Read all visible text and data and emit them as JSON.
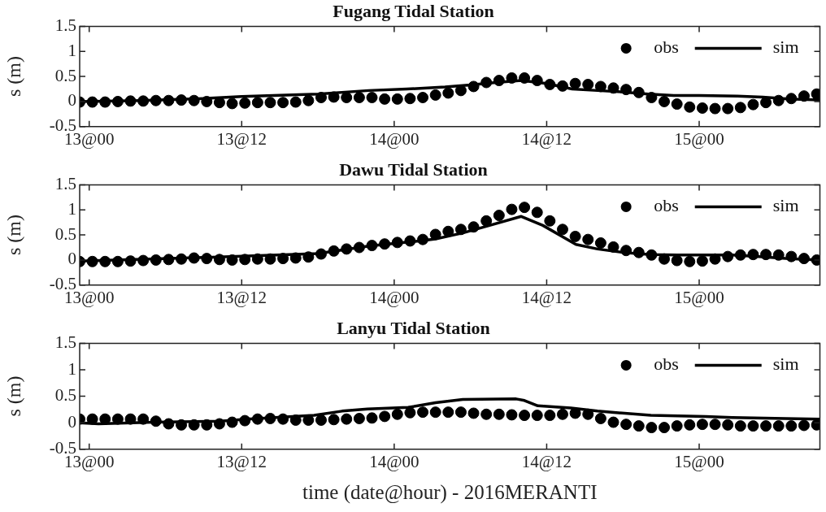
{
  "chart_data": [
    {
      "type": "scatter",
      "title": "Fugang Tidal Station",
      "ylabel": "s (m)",
      "legend": "top right",
      "grid": false,
      "marker": "circle",
      "xlim": [
        "2016-09-12T23:15",
        "2016-09-15T09:30"
      ],
      "ylim": [
        -0.5,
        1.5
      ],
      "yticks": [
        -0.5,
        0,
        0.5,
        1,
        1.5
      ],
      "xticks": [
        {
          "value": "2016-09-13T00:00",
          "label": "13@00"
        },
        {
          "value": "2016-09-13T12:00",
          "label": "13@12"
        },
        {
          "value": "2016-09-14T00:00",
          "label": "14@00"
        },
        {
          "value": "2016-09-14T12:00",
          "label": "14@12"
        },
        {
          "value": "2016-09-15T00:00",
          "label": "15@00"
        }
      ],
      "x": [
        "2016-09-12T23:15",
        "2016-09-13T00:15",
        "2016-09-13T01:15",
        "2016-09-13T02:15",
        "2016-09-13T03:15",
        "2016-09-13T04:15",
        "2016-09-13T05:15",
        "2016-09-13T06:15",
        "2016-09-13T07:15",
        "2016-09-13T08:15",
        "2016-09-13T09:15",
        "2016-09-13T10:15",
        "2016-09-13T11:15",
        "2016-09-13T12:15",
        "2016-09-13T13:15",
        "2016-09-13T14:15",
        "2016-09-13T15:15",
        "2016-09-13T16:15",
        "2016-09-13T17:15",
        "2016-09-13T18:15",
        "2016-09-13T19:15",
        "2016-09-13T20:15",
        "2016-09-13T21:15",
        "2016-09-13T22:15",
        "2016-09-13T23:15",
        "2016-09-14T00:15",
        "2016-09-14T01:15",
        "2016-09-14T02:15",
        "2016-09-14T03:15",
        "2016-09-14T04:15",
        "2016-09-14T05:15",
        "2016-09-14T06:15",
        "2016-09-14T07:15",
        "2016-09-14T08:15",
        "2016-09-14T09:15",
        "2016-09-14T10:15",
        "2016-09-14T11:15",
        "2016-09-14T12:15",
        "2016-09-14T13:15",
        "2016-09-14T14:15",
        "2016-09-14T15:15",
        "2016-09-14T16:15",
        "2016-09-14T17:15",
        "2016-09-14T18:15",
        "2016-09-14T19:15",
        "2016-09-14T20:15",
        "2016-09-14T21:15",
        "2016-09-14T22:15",
        "2016-09-14T23:15",
        "2016-09-15T00:15",
        "2016-09-15T01:15",
        "2016-09-15T02:15",
        "2016-09-15T03:15",
        "2016-09-15T04:15",
        "2016-09-15T05:15",
        "2016-09-15T06:15",
        "2016-09-15T07:15",
        "2016-09-15T08:15",
        "2016-09-15T09:15"
      ],
      "series": [
        {
          "name": "obs",
          "color": "#000000",
          "values": [
            -0.01,
            -0.01,
            -0.01,
            0,
            0.01,
            0.01,
            0.02,
            0.02,
            0.03,
            0.02,
            0,
            -0.02,
            -0.04,
            -0.03,
            -0.02,
            -0.02,
            -0.02,
            -0.01,
            0.02,
            0.08,
            0.09,
            0.08,
            0.08,
            0.08,
            0.05,
            0.05,
            0.06,
            0.08,
            0.13,
            0.17,
            0.22,
            0.3,
            0.38,
            0.42,
            0.47,
            0.47,
            0.42,
            0.34,
            0.31,
            0.36,
            0.34,
            0.3,
            0.27,
            0.24,
            0.18,
            0.08,
            0,
            -0.05,
            -0.11,
            -0.13,
            -0.14,
            -0.14,
            -0.12,
            -0.06,
            -0.02,
            0.02,
            0.06,
            0.11,
            0.15
          ]
        },
        {
          "name": "sim",
          "type": "line",
          "marker": "none",
          "color": "#000000",
          "x": [
            "2016-09-12T23:15",
            "2016-09-13T04:00",
            "2016-09-13T09:00",
            "2016-09-13T12:00",
            "2016-09-13T18:00",
            "2016-09-13T22:00",
            "2016-09-14T01:00",
            "2016-09-14T04:00",
            "2016-09-14T06:00",
            "2016-09-14T08:00",
            "2016-09-14T10:00",
            "2016-09-14T12:00",
            "2016-09-14T14:00",
            "2016-09-14T16:00",
            "2016-09-14T18:00",
            "2016-09-14T20:00",
            "2016-09-14T22:00",
            "2016-09-15T00:00",
            "2016-09-15T03:00",
            "2016-09-15T05:00",
            "2016-09-15T07:00",
            "2016-09-15T09:30"
          ],
          "values": [
            0,
            0.02,
            0.06,
            0.1,
            0.15,
            0.22,
            0.25,
            0.29,
            0.33,
            0.38,
            0.42,
            0.36,
            0.25,
            0.22,
            0.19,
            0.15,
            0.12,
            0.12,
            0.11,
            0.09,
            0.05,
            0.03
          ]
        }
      ]
    },
    {
      "type": "scatter",
      "title": "Dawu Tidal Station",
      "ylabel": "s (m)",
      "legend": "top right",
      "grid": false,
      "marker": "circle",
      "xlim": [
        "2016-09-12T23:15",
        "2016-09-15T09:30"
      ],
      "ylim": [
        -0.5,
        1.5
      ],
      "yticks": [
        -0.5,
        0,
        0.5,
        1,
        1.5
      ],
      "xticks": [
        {
          "value": "2016-09-13T00:00",
          "label": "13@00"
        },
        {
          "value": "2016-09-13T12:00",
          "label": "13@12"
        },
        {
          "value": "2016-09-14T00:00",
          "label": "14@00"
        },
        {
          "value": "2016-09-14T12:00",
          "label": "14@12"
        },
        {
          "value": "2016-09-15T00:00",
          "label": "15@00"
        }
      ],
      "x": [
        "2016-09-12T23:15",
        "2016-09-13T00:15",
        "2016-09-13T01:15",
        "2016-09-13T02:15",
        "2016-09-13T03:15",
        "2016-09-13T04:15",
        "2016-09-13T05:15",
        "2016-09-13T06:15",
        "2016-09-13T07:15",
        "2016-09-13T08:15",
        "2016-09-13T09:15",
        "2016-09-13T10:15",
        "2016-09-13T11:15",
        "2016-09-13T12:15",
        "2016-09-13T13:15",
        "2016-09-13T14:15",
        "2016-09-13T15:15",
        "2016-09-13T16:15",
        "2016-09-13T17:15",
        "2016-09-13T18:15",
        "2016-09-13T19:15",
        "2016-09-13T20:15",
        "2016-09-13T21:15",
        "2016-09-13T22:15",
        "2016-09-13T23:15",
        "2016-09-14T00:15",
        "2016-09-14T01:15",
        "2016-09-14T02:15",
        "2016-09-14T03:15",
        "2016-09-14T04:15",
        "2016-09-14T05:15",
        "2016-09-14T06:15",
        "2016-09-14T07:15",
        "2016-09-14T08:15",
        "2016-09-14T09:15",
        "2016-09-14T10:15",
        "2016-09-14T11:15",
        "2016-09-14T12:15",
        "2016-09-14T13:15",
        "2016-09-14T14:15",
        "2016-09-14T15:15",
        "2016-09-14T16:15",
        "2016-09-14T17:15",
        "2016-09-14T18:15",
        "2016-09-14T19:15",
        "2016-09-14T20:15",
        "2016-09-14T21:15",
        "2016-09-14T22:15",
        "2016-09-14T23:15",
        "2016-09-15T00:15",
        "2016-09-15T01:15",
        "2016-09-15T02:15",
        "2016-09-15T03:15",
        "2016-09-15T04:15",
        "2016-09-15T05:15",
        "2016-09-15T06:15",
        "2016-09-15T07:15",
        "2016-09-15T08:15",
        "2016-09-15T09:15"
      ],
      "series": [
        {
          "name": "obs",
          "color": "#000000",
          "values": [
            -0.03,
            -0.03,
            -0.03,
            -0.03,
            -0.02,
            -0.01,
            0,
            0.01,
            0.02,
            0.04,
            0.03,
            0.01,
            0,
            0.01,
            0.02,
            0.02,
            0.03,
            0.04,
            0.06,
            0.12,
            0.18,
            0.22,
            0.25,
            0.29,
            0.32,
            0.35,
            0.38,
            0.41,
            0.51,
            0.57,
            0.61,
            0.66,
            0.78,
            0.89,
            1.01,
            1.05,
            0.95,
            0.78,
            0.61,
            0.47,
            0.41,
            0.34,
            0.26,
            0.19,
            0.15,
            0.1,
            0.02,
            -0.01,
            -0.03,
            -0.02,
            0.02,
            0.07,
            0.1,
            0.11,
            0.11,
            0.1,
            0.07,
            0.03,
            0
          ]
        },
        {
          "name": "sim",
          "type": "line",
          "marker": "none",
          "color": "#000000",
          "x": [
            "2016-09-12T23:15",
            "2016-09-13T09:00",
            "2016-09-13T18:00",
            "2016-09-13T22:00",
            "2016-09-14T02:00",
            "2016-09-14T03:15",
            "2016-09-14T05:24",
            "2016-09-14T07:30",
            "2016-09-14T10:00",
            "2016-09-14T11:42",
            "2016-09-14T14:18",
            "2016-09-14T16:00",
            "2016-09-14T18:06",
            "2016-09-14T20:12",
            "2016-09-14T22:18",
            "2016-09-15T02:36",
            "2016-09-15T04:42",
            "2016-09-15T06:48",
            "2016-09-15T09:30"
          ],
          "values": [
            -0.02,
            0.05,
            0.13,
            0.28,
            0.38,
            0.42,
            0.54,
            0.69,
            0.87,
            0.69,
            0.31,
            0.22,
            0.15,
            0.11,
            0.1,
            0.1,
            0.07,
            0.03,
            0
          ]
        }
      ]
    },
    {
      "type": "scatter",
      "title": "Lanyu Tidal Station",
      "ylabel": "s (m)",
      "xlabel": "time (date@hour) - 2016MERANTI",
      "legend": "top right",
      "grid": false,
      "marker": "circle",
      "xlim": [
        "2016-09-12T23:15",
        "2016-09-15T09:30"
      ],
      "ylim": [
        -0.5,
        1.5
      ],
      "yticks": [
        -0.5,
        0,
        0.5,
        1,
        1.5
      ],
      "xticks": [
        {
          "value": "2016-09-13T00:00",
          "label": "13@00"
        },
        {
          "value": "2016-09-13T12:00",
          "label": "13@12"
        },
        {
          "value": "2016-09-14T00:00",
          "label": "14@00"
        },
        {
          "value": "2016-09-14T12:00",
          "label": "14@12"
        },
        {
          "value": "2016-09-15T00:00",
          "label": "15@00"
        }
      ],
      "x": [
        "2016-09-12T23:15",
        "2016-09-13T00:15",
        "2016-09-13T01:15",
        "2016-09-13T02:15",
        "2016-09-13T03:15",
        "2016-09-13T04:15",
        "2016-09-13T05:15",
        "2016-09-13T06:15",
        "2016-09-13T07:15",
        "2016-09-13T08:15",
        "2016-09-13T09:15",
        "2016-09-13T10:15",
        "2016-09-13T11:15",
        "2016-09-13T12:15",
        "2016-09-13T13:15",
        "2016-09-13T14:15",
        "2016-09-13T15:15",
        "2016-09-13T16:15",
        "2016-09-13T17:15",
        "2016-09-13T18:15",
        "2016-09-13T19:15",
        "2016-09-13T20:15",
        "2016-09-13T21:15",
        "2016-09-13T22:15",
        "2016-09-13T23:15",
        "2016-09-14T00:15",
        "2016-09-14T01:15",
        "2016-09-14T02:15",
        "2016-09-14T03:15",
        "2016-09-14T04:15",
        "2016-09-14T05:15",
        "2016-09-14T06:15",
        "2016-09-14T07:15",
        "2016-09-14T08:15",
        "2016-09-14T09:15",
        "2016-09-14T10:15",
        "2016-09-14T11:15",
        "2016-09-14T12:15",
        "2016-09-14T13:15",
        "2016-09-14T14:15",
        "2016-09-14T15:15",
        "2016-09-14T16:15",
        "2016-09-14T17:15",
        "2016-09-14T18:15",
        "2016-09-14T19:15",
        "2016-09-14T20:15",
        "2016-09-14T21:15",
        "2016-09-14T22:15",
        "2016-09-14T23:15",
        "2016-09-15T00:15",
        "2016-09-15T01:15",
        "2016-09-15T02:15",
        "2016-09-15T03:15",
        "2016-09-15T04:15",
        "2016-09-15T05:15",
        "2016-09-15T06:15",
        "2016-09-15T07:15",
        "2016-09-15T08:15",
        "2016-09-15T09:15"
      ],
      "series": [
        {
          "name": "obs",
          "color": "#000000",
          "values": [
            0.07,
            0.07,
            0.07,
            0.07,
            0.07,
            0.07,
            0.03,
            -0.02,
            -0.04,
            -0.04,
            -0.04,
            -0.02,
            0.01,
            0.04,
            0.07,
            0.08,
            0.07,
            0.05,
            0.05,
            0.05,
            0.06,
            0.07,
            0.08,
            0.09,
            0.12,
            0.16,
            0.19,
            0.2,
            0.2,
            0.2,
            0.2,
            0.18,
            0.16,
            0.16,
            0.15,
            0.14,
            0.14,
            0.14,
            0.16,
            0.18,
            0.16,
            0.08,
            0.01,
            -0.03,
            -0.06,
            -0.09,
            -0.09,
            -0.06,
            -0.04,
            -0.03,
            -0.03,
            -0.04,
            -0.06,
            -0.06,
            -0.06,
            -0.06,
            -0.06,
            -0.05,
            -0.04
          ]
        },
        {
          "name": "sim",
          "type": "line",
          "marker": "none",
          "color": "#000000",
          "x": [
            "2016-09-12T23:15",
            "2016-09-13T00:44",
            "2016-09-13T05:00",
            "2016-09-13T10:18",
            "2016-09-13T12:24",
            "2016-09-13T17:42",
            "2016-09-13T19:54",
            "2016-09-13T21:54",
            "2016-09-14T01:06",
            "2016-09-14T03:15",
            "2016-09-14T05:24",
            "2016-09-14T09:36",
            "2016-09-14T10:15",
            "2016-09-14T11:18",
            "2016-09-14T13:54",
            "2016-09-14T16:00",
            "2016-09-14T20:12",
            "2016-09-15T00:30",
            "2016-09-15T02:36",
            "2016-09-15T06:48",
            "2016-09-15T09:30"
          ],
          "values": [
            0,
            -0.02,
            0.01,
            0.03,
            0.07,
            0.14,
            0.22,
            0.26,
            0.29,
            0.38,
            0.44,
            0.45,
            0.42,
            0.32,
            0.28,
            0.22,
            0.14,
            0.12,
            0.1,
            0.08,
            0.07
          ]
        }
      ]
    }
  ]
}
